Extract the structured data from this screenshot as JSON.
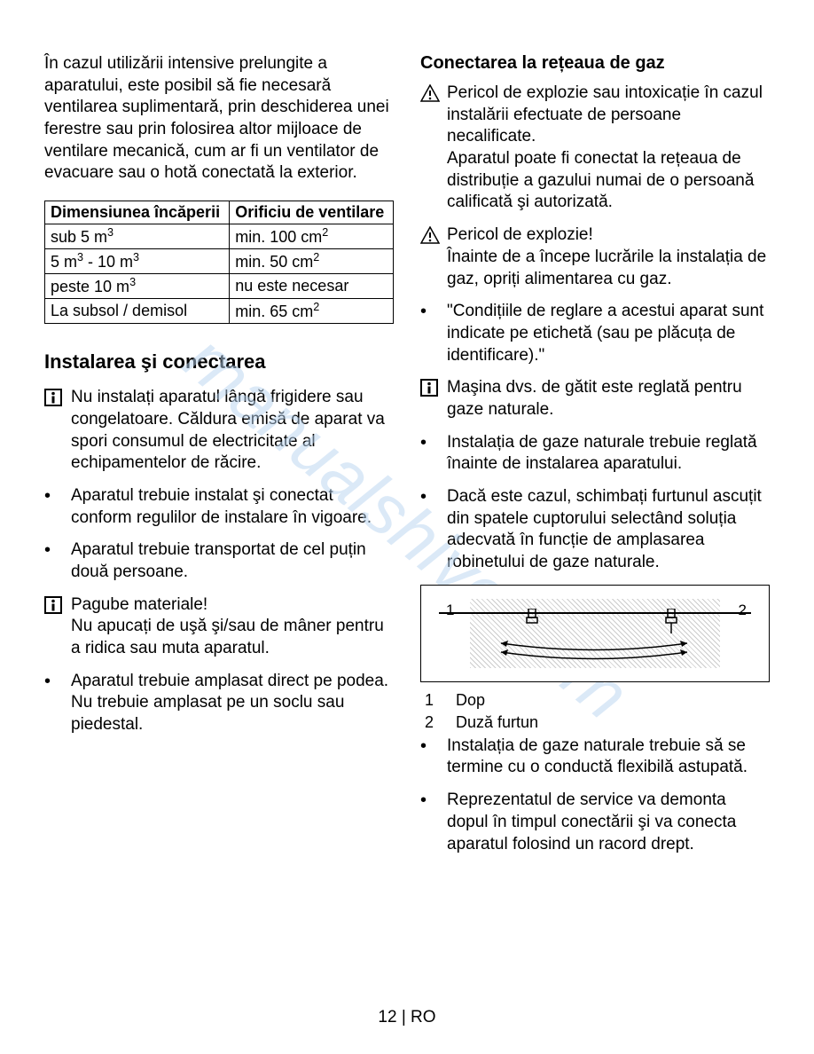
{
  "leftCol": {
    "intro": "În cazul utilizării intensive prelungite a aparatului, este posibil să fie necesară ventilarea suplimentară, prin deschiderea unei ferestre sau prin folosirea altor mijloace de ventilare mecanică, cum ar fi un ventilator de evacuare sau o hotă conectată la exterior.",
    "table": {
      "header1": "Dimensiunea încăperii",
      "header2": "Orificiu de ventilare",
      "rows": [
        {
          "c1": "sub 5  m³",
          "c2": "min. 100 cm²"
        },
        {
          "c1": "5 m³ - 10 m³",
          "c2": "min. 50 cm²"
        },
        {
          "c1": "peste 10  m³",
          "c2": "nu este necesar"
        },
        {
          "c1": "La subsol / demisol",
          "c2": "min. 65 cm²"
        }
      ]
    },
    "heading": "Instalarea şi conectarea",
    "items": [
      {
        "icon": "info",
        "text": "Nu instalați aparatul lângă frigidere sau congelatoare. Căldura emisă de aparat va spori consumul de electricitate al echipamentelor de răcire."
      },
      {
        "icon": "bullet",
        "text": "Aparatul trebuie instalat şi conectat conform regulilor de instalare în vigoare."
      },
      {
        "icon": "bullet",
        "text": "Aparatul trebuie transportat de cel puțin două persoane."
      },
      {
        "icon": "info",
        "text": "Pagube materiale!\nNu apucați de uşă şi/sau de mâner pentru a ridica sau muta aparatul."
      },
      {
        "icon": "bullet",
        "text": "Aparatul trebuie amplasat direct pe podea. Nu trebuie amplasat pe un soclu sau piedestal."
      }
    ]
  },
  "rightCol": {
    "heading": "Conectarea la rețeaua de gaz",
    "items1": [
      {
        "icon": "warning",
        "text": "Pericol de explozie sau intoxicație în cazul instalării efectuate de persoane necalificate.\nAparatul poate fi conectat la rețeaua de distribuție a gazului numai de o persoană calificată şi autorizată."
      },
      {
        "icon": "warning",
        "text": "Pericol de explozie!\nÎnainte de a începe lucrările la instalația de gaz, opriți alimentarea cu gaz."
      },
      {
        "icon": "bullet",
        "text": "\"Condițiile de reglare a acestui aparat sunt indicate pe etichetă (sau pe plăcuța de identificare).\""
      },
      {
        "icon": "info",
        "text": "Maşina dvs. de gătit este reglată pentru gaze naturale."
      },
      {
        "icon": "bullet",
        "text": "Instalația de gaze naturale trebuie reglată înainte de instalarea aparatului."
      },
      {
        "icon": "bullet",
        "text": "Dacă este cazul, schimbați furtunul ascuțit din spatele cuptorului selectând soluția adecvată în funcție de amplasarea robinetului de gaze naturale."
      }
    ],
    "diagram": {
      "l1": "1",
      "l2": "2"
    },
    "legend": [
      {
        "num": "1",
        "text": "Dop"
      },
      {
        "num": "2",
        "text": "Duză furtun"
      }
    ],
    "items2": [
      {
        "icon": "bullet",
        "text": "Instalația de gaze naturale trebuie să se termine cu o conductă flexibilă astupată."
      },
      {
        "icon": "bullet",
        "text": "Reprezentatul de service va demonta dopul în timpul conectării şi va conecta aparatul folosind un racord drept."
      }
    ]
  },
  "footer": "12 | RO",
  "watermark": "manualshive.com"
}
